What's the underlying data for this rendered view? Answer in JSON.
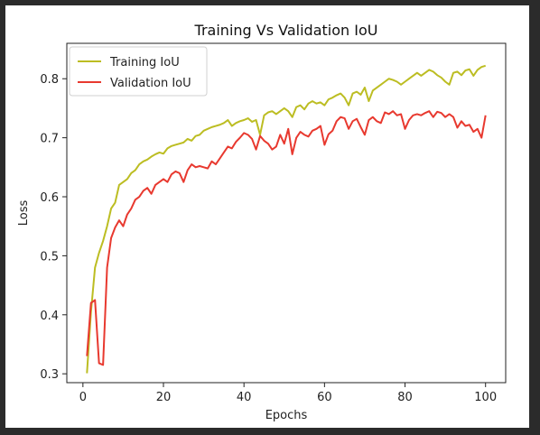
{
  "chart_data": {
    "type": "line",
    "title": "Training Vs Validation IoU",
    "xlabel": "Epochs",
    "ylabel": "Loss",
    "xlim": [
      -4,
      105
    ],
    "ylim": [
      0.285,
      0.86
    ],
    "xticks": [
      0,
      20,
      40,
      60,
      80,
      100
    ],
    "yticks": [
      0.3,
      0.4,
      0.5,
      0.6,
      0.7,
      0.8
    ],
    "ytick_labels": [
      "0.3",
      "0.4",
      "0.5",
      "0.6",
      "0.7",
      "0.8"
    ],
    "legend_position": "upper-left",
    "grid": false,
    "x": [
      1,
      2,
      3,
      4,
      5,
      6,
      7,
      8,
      9,
      10,
      11,
      12,
      13,
      14,
      15,
      16,
      17,
      18,
      19,
      20,
      21,
      22,
      23,
      24,
      25,
      26,
      27,
      28,
      29,
      30,
      31,
      32,
      33,
      34,
      35,
      36,
      37,
      38,
      39,
      40,
      41,
      42,
      43,
      44,
      45,
      46,
      47,
      48,
      49,
      50,
      51,
      52,
      53,
      54,
      55,
      56,
      57,
      58,
      59,
      60,
      61,
      62,
      63,
      64,
      65,
      66,
      67,
      68,
      69,
      70,
      71,
      72,
      73,
      74,
      75,
      76,
      77,
      78,
      79,
      80,
      81,
      82,
      83,
      84,
      85,
      86,
      87,
      88,
      89,
      90,
      91,
      92,
      93,
      94,
      95,
      96,
      97,
      98,
      99,
      100
    ],
    "series": [
      {
        "name": "Training IoU",
        "color": "#bcbd22",
        "values": [
          0.301,
          0.405,
          0.48,
          0.505,
          0.525,
          0.55,
          0.58,
          0.59,
          0.62,
          0.625,
          0.63,
          0.64,
          0.645,
          0.655,
          0.66,
          0.663,
          0.668,
          0.672,
          0.675,
          0.673,
          0.682,
          0.686,
          0.688,
          0.69,
          0.692,
          0.698,
          0.695,
          0.703,
          0.705,
          0.712,
          0.715,
          0.718,
          0.72,
          0.722,
          0.725,
          0.73,
          0.72,
          0.725,
          0.728,
          0.73,
          0.733,
          0.727,
          0.73,
          0.705,
          0.738,
          0.743,
          0.745,
          0.74,
          0.745,
          0.75,
          0.745,
          0.735,
          0.752,
          0.755,
          0.748,
          0.758,
          0.762,
          0.758,
          0.76,
          0.755,
          0.765,
          0.768,
          0.772,
          0.775,
          0.768,
          0.755,
          0.775,
          0.778,
          0.773,
          0.785,
          0.762,
          0.78,
          0.785,
          0.79,
          0.795,
          0.8,
          0.798,
          0.795,
          0.79,
          0.795,
          0.8,
          0.805,
          0.81,
          0.805,
          0.81,
          0.815,
          0.812,
          0.806,
          0.802,
          0.795,
          0.79,
          0.81,
          0.812,
          0.806,
          0.814,
          0.816,
          0.805,
          0.815,
          0.82,
          0.822
        ]
      },
      {
        "name": "Validation IoU",
        "color": "#e8392f",
        "values": [
          0.33,
          0.42,
          0.425,
          0.318,
          0.315,
          0.48,
          0.53,
          0.548,
          0.56,
          0.55,
          0.57,
          0.58,
          0.595,
          0.6,
          0.61,
          0.615,
          0.605,
          0.62,
          0.625,
          0.63,
          0.625,
          0.638,
          0.643,
          0.64,
          0.625,
          0.645,
          0.655,
          0.65,
          0.652,
          0.65,
          0.648,
          0.66,
          0.655,
          0.665,
          0.675,
          0.685,
          0.682,
          0.693,
          0.7,
          0.708,
          0.705,
          0.698,
          0.68,
          0.703,
          0.695,
          0.69,
          0.68,
          0.685,
          0.705,
          0.69,
          0.715,
          0.672,
          0.7,
          0.71,
          0.705,
          0.702,
          0.712,
          0.715,
          0.72,
          0.688,
          0.706,
          0.712,
          0.728,
          0.735,
          0.733,
          0.715,
          0.728,
          0.732,
          0.718,
          0.705,
          0.73,
          0.735,
          0.728,
          0.725,
          0.743,
          0.74,
          0.745,
          0.738,
          0.74,
          0.715,
          0.73,
          0.738,
          0.74,
          0.738,
          0.742,
          0.745,
          0.735,
          0.744,
          0.742,
          0.735,
          0.74,
          0.735,
          0.717,
          0.728,
          0.72,
          0.722,
          0.71,
          0.715,
          0.7,
          0.738
        ]
      }
    ]
  }
}
